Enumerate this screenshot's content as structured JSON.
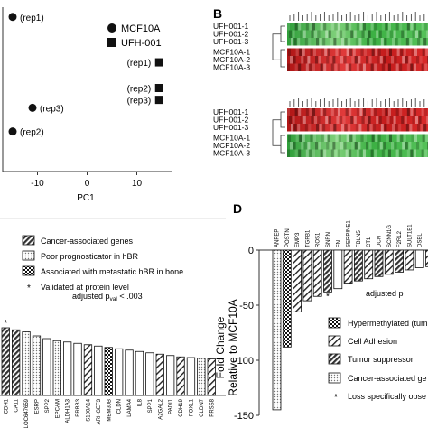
{
  "panel_labels": {
    "b": "B",
    "d": "D"
  },
  "chart_data": [
    {
      "panel": "A",
      "type": "scatter",
      "xlabel": "PC1",
      "x_ticks": [
        -10,
        0,
        10
      ],
      "xlim": [
        -17,
        17
      ],
      "ylim": [
        -4,
        4
      ],
      "legend": [
        {
          "label": "MCF10A",
          "marker": "circle"
        },
        {
          "label": "UFH-001",
          "marker": "square"
        }
      ],
      "series": [
        {
          "name": "MCF10A",
          "marker": "circle",
          "points": [
            {
              "label": "(rep1)",
              "x": -15,
              "y": 3.6
            },
            {
              "label": "(rep3)",
              "x": -11,
              "y": -1.0
            },
            {
              "label": "(rep2)",
              "x": -15,
              "y": -2.2
            }
          ]
        },
        {
          "name": "UFH-001",
          "marker": "square",
          "points": [
            {
              "label": "(rep1)",
              "x": 14.5,
              "y": 1.3
            },
            {
              "label": "(rep2)",
              "x": 14.5,
              "y": 0.0
            },
            {
              "label": "(rep3)",
              "x": 14.5,
              "y": -0.6
            }
          ]
        }
      ]
    },
    {
      "panel": "B",
      "type": "heatmap",
      "blocks": [
        {
          "rows": [
            "UFH001-1",
            "UFH001-2",
            "UFH001-3",
            "MCF10A-1",
            "MCF10A-2",
            "MCF10A-3"
          ],
          "pattern": "upper rows green, lower rows red"
        },
        {
          "rows": [
            "UFH001-1",
            "UFH001-2",
            "UFH001-3",
            "MCF10A-1",
            "MCF10A-2",
            "MCF10A-3"
          ],
          "pattern": "upper rows red, lower rows green"
        }
      ],
      "colors": {
        "red": "#cc1e1e",
        "green": "#3cb043"
      }
    },
    {
      "panel": "C",
      "type": "bar",
      "legend": [
        {
          "label": "Cancer-associated genes",
          "pattern": "dense-hatch"
        },
        {
          "label": "Poor prognosticator in hBR",
          "pattern": "dots"
        },
        {
          "label": "Associated with metastatic hBR in bone",
          "pattern": "checker"
        },
        {
          "label": "Validated at protein level",
          "pattern": "asterisk"
        }
      ],
      "annotation": {
        "prefix": "adjusted p",
        "sub": "val",
        "suffix": " < .003"
      },
      "categories": [
        "CDH1",
        "CA11",
        "LOC647659",
        "ESRP",
        "SPP2",
        "EPCAM",
        "ALDH1A3",
        "ERBB3",
        "S100A14",
        "ARHGEF3",
        "TMEM30B",
        "CLDN",
        "LAMA4",
        "IL8",
        "SPP1",
        "A2GAL2",
        "PADI1",
        "CDH19",
        "FOXL1",
        "CLDN7",
        "PRSS8"
      ],
      "values": [
        100,
        97,
        94,
        88,
        84,
        81,
        79,
        77,
        75,
        73,
        71,
        69,
        67,
        65,
        63,
        61,
        59,
        57,
        56,
        55,
        54
      ],
      "patterns": [
        "dense-hatch",
        "dense-hatch",
        "dots",
        "dots",
        "none",
        "dots",
        "none",
        "none",
        "hatch",
        "none",
        "checker",
        "none",
        "none",
        "none",
        "none",
        "hatch",
        "none",
        "hatch",
        "none",
        "dots",
        "hatch"
      ],
      "starred": [
        0
      ]
    },
    {
      "panel": "D",
      "type": "bar",
      "ylabel": "Fold Change",
      "ylabel2": "Relative to MCF10A",
      "y_ticks": [
        0,
        -50,
        -100,
        -150
      ],
      "ylim": [
        -150,
        0
      ],
      "categories": [
        "ANPEP",
        "POSTN",
        "EMP3",
        "TGFB1",
        "ROS1",
        "SNRN",
        "FN",
        "SERPINE1",
        "FBLN5",
        "CT1",
        "DCN",
        "SCNN1G",
        "F2RL2",
        "SULT1E1",
        "DSEL",
        "MYL9",
        "FBN",
        "GAS"
      ],
      "values": [
        -145,
        -88,
        -56,
        -46,
        -42,
        -38,
        -35,
        -30,
        -28,
        -26,
        -24,
        -22,
        -20,
        -18,
        -16,
        -15,
        -13,
        -12
      ],
      "patterns": [
        "dots",
        "checker",
        "hatch",
        "hatch",
        "hatch",
        "dense-hatch",
        "none",
        "hatch",
        "dense-hatch",
        "hatch",
        "dense-hatch",
        "hatch",
        "dense-hatch",
        "hatch",
        "none",
        "hatch",
        "dense-hatch",
        "hatch"
      ],
      "starred": [
        5
      ],
      "annotation": "adjusted p",
      "legend": [
        {
          "label": "Hypermethylated  (tum",
          "pattern": "checker"
        },
        {
          "label": "Cell Adhesion",
          "pattern": "hatch"
        },
        {
          "label": "Tumor suppressor",
          "pattern": "dense-hatch"
        },
        {
          "label": "Cancer-associated ge",
          "pattern": "dots"
        },
        {
          "label": "Loss specifically obse",
          "pattern": "asterisk"
        }
      ]
    }
  ]
}
